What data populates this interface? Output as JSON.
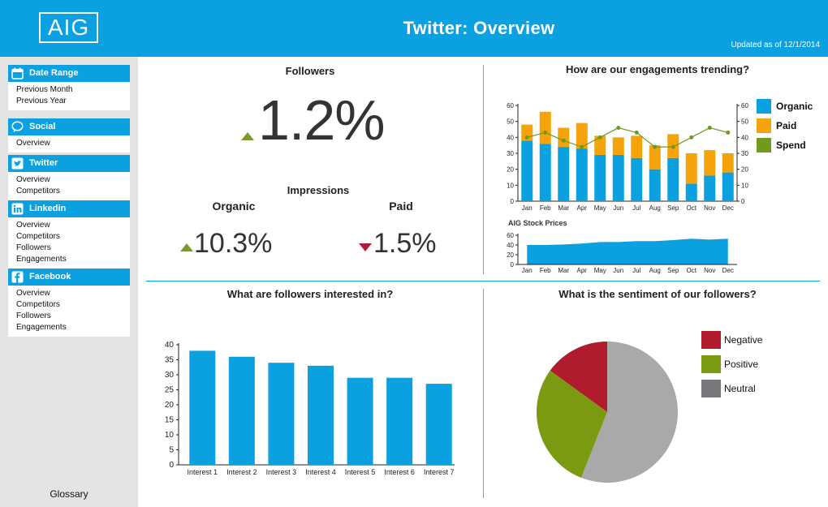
{
  "header": {
    "logo_text": "AIG",
    "title": "Twitter: Overview",
    "updated": "Updated as of 12/1/2014",
    "bg_color": "#0ba0df"
  },
  "sidebar": {
    "groups": [
      {
        "label": "Date Range",
        "icon": "calendar-icon",
        "items": [
          "Previous Month",
          "Previous Year"
        ]
      },
      {
        "label": "Social",
        "icon": "speech-bubble-icon",
        "items": [
          "Overview"
        ]
      },
      {
        "label": "Twitter",
        "icon": "twitter-icon",
        "items": [
          "Overview",
          "Competitors"
        ]
      },
      {
        "label": "Linkedin",
        "icon": "linkedin-icon",
        "items": [
          "Overview",
          "Competitors",
          "Followers",
          "Engagements"
        ]
      },
      {
        "label": "Facebook",
        "icon": "facebook-icon",
        "items": [
          "Overview",
          "Competitors",
          "Followers",
          "Engagements"
        ]
      }
    ],
    "glossary": "Glossary"
  },
  "followers": {
    "title": "Followers",
    "value": "1.2%",
    "trend": "up"
  },
  "impressions": {
    "title": "Impressions",
    "organic_label": "Organic",
    "organic_value": "10.3%",
    "organic_trend": "up",
    "paid_label": "Paid",
    "paid_value": "1.5%",
    "paid_trend": "down"
  },
  "colors": {
    "organic": "#0ba0df",
    "paid": "#f5a30a",
    "spend": "#6f9a1e",
    "negative": "#b01c2e",
    "positive": "#7a9a12",
    "neutral": "#a9a9a9",
    "neutral_swatch": "#77777c",
    "up": "#7a9a2e",
    "down": "#b01c3c"
  },
  "chart_data": [
    {
      "id": "engagements",
      "type": "bar",
      "title": "How are our engagements trending?",
      "categories": [
        "Jan",
        "Feb",
        "Mar",
        "Apr",
        "May",
        "Jun",
        "Jul",
        "Aug",
        "Sep",
        "Oct",
        "Nov",
        "Dec"
      ],
      "series": [
        {
          "name": "Organic",
          "kind": "stacked-bar",
          "values": [
            38,
            36,
            34,
            33,
            29,
            29,
            27,
            20,
            27,
            11,
            16,
            18
          ]
        },
        {
          "name": "Paid",
          "kind": "stacked-bar",
          "values": [
            10,
            20,
            12,
            16,
            12,
            11,
            14,
            15,
            15,
            19,
            16,
            12
          ]
        },
        {
          "name": "Spend",
          "kind": "line",
          "values": [
            40,
            43,
            38,
            34,
            40,
            46,
            43,
            34,
            34,
            40,
            46,
            43
          ]
        }
      ],
      "y_ticks": [
        0,
        10,
        20,
        30,
        40,
        50,
        60
      ],
      "y2_ticks": [
        0,
        10,
        20,
        30,
        40,
        50,
        60
      ],
      "ylim": [
        0,
        60
      ],
      "legend": "right"
    },
    {
      "id": "stock",
      "type": "area",
      "title": "AIG Stock Prices",
      "categories": [
        "Jan",
        "Feb",
        "Mar",
        "Apr",
        "May",
        "Jun",
        "Jul",
        "Aug",
        "Sep",
        "Oct",
        "Nov",
        "Dec"
      ],
      "values": [
        40,
        40,
        41,
        43,
        46,
        46,
        48,
        48,
        50,
        53,
        51,
        53
      ],
      "y_ticks": [
        0,
        20,
        40,
        60
      ],
      "ylim": [
        0,
        60
      ]
    },
    {
      "id": "interests",
      "type": "bar",
      "title": "What are followers interested in?",
      "categories": [
        "Interest 1",
        "Interest 2",
        "Interest 3",
        "Interest 4",
        "Interest 5",
        "Interest 6",
        "Interest 7"
      ],
      "values": [
        38,
        36,
        34,
        33,
        29,
        29,
        27
      ],
      "y_ticks": [
        0,
        5,
        10,
        15,
        20,
        25,
        30,
        35,
        40
      ],
      "ylim": [
        0,
        40
      ]
    },
    {
      "id": "sentiment",
      "type": "pie",
      "title": "What is the sentiment of our followers?",
      "labels": [
        "Negative",
        "Positive",
        "Neutral"
      ],
      "values": [
        15,
        29,
        56
      ],
      "legend": "right"
    }
  ]
}
